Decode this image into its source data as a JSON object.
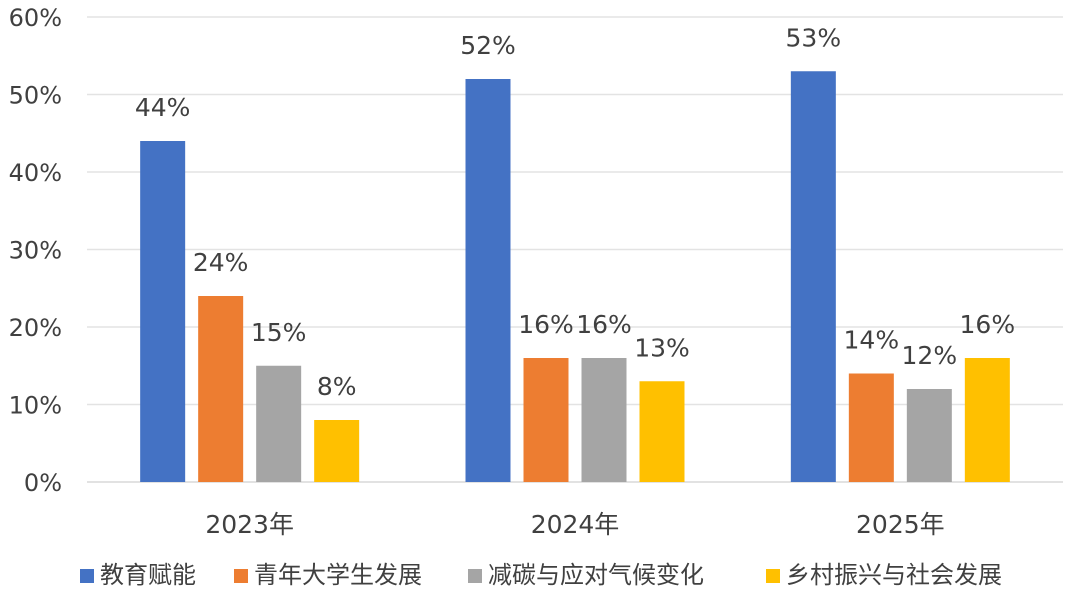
{
  "chart_data": {
    "type": "bar",
    "categories": [
      "2023年",
      "2024年",
      "2025年"
    ],
    "series": [
      {
        "name": "教育赋能",
        "values": [
          44,
          52,
          53
        ],
        "labels": [
          "44%",
          "52%",
          "53%"
        ],
        "color": "#4472C4"
      },
      {
        "name": "青年大学生发展",
        "values": [
          24,
          16,
          14
        ],
        "labels": [
          "24%",
          "16%",
          "14%"
        ],
        "color": "#ED7D31"
      },
      {
        "name": "减碳与应对气候变化",
        "values": [
          15,
          16,
          12
        ],
        "labels": [
          "15%",
          "16%",
          "12%"
        ],
        "color": "#A5A5A5"
      },
      {
        "name": "乡村振兴与社会发展",
        "values": [
          8,
          13,
          16
        ],
        "labels": [
          "8%",
          "13%",
          "16%"
        ],
        "color": "#FFC000"
      }
    ],
    "ylim": [
      0,
      60
    ],
    "yticks": [
      "0%",
      "10%",
      "20%",
      "30%",
      "40%",
      "50%",
      "60%"
    ],
    "grid": true,
    "legend": "bottom",
    "title": "",
    "xlabel": "",
    "ylabel": ""
  }
}
